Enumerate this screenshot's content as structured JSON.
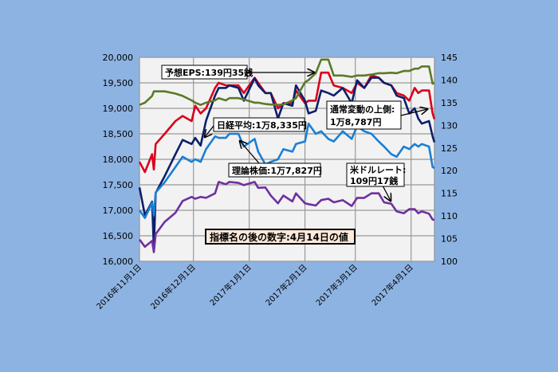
{
  "chart_data": {
    "type": "line",
    "title": "",
    "left_axis": {
      "ylim": [
        16000,
        20000
      ],
      "ticks": [
        "16,000",
        "16,500",
        "17,000",
        "17,500",
        "18,000",
        "18,500",
        "19,000",
        "19,500",
        "20,000"
      ]
    },
    "right_axis": {
      "ylim": [
        100,
        145
      ],
      "ticks": [
        "100",
        "105",
        "110",
        "115",
        "120",
        "125",
        "130",
        "135",
        "140",
        "145"
      ]
    },
    "x_ticks": [
      {
        "date": "2016-11-01",
        "label": "2016年11月1日"
      },
      {
        "date": "2016-12-01",
        "label": "2016年12月1日"
      },
      {
        "date": "2017-01-01",
        "label": "2017年1月1日"
      },
      {
        "date": "2017-02-01",
        "label": "2017年2月1日"
      },
      {
        "date": "2017-03-01",
        "label": "2017年3月1日"
      },
      {
        "date": "2017-04-01",
        "label": "2017年4月1日"
      }
    ],
    "xlim": [
      "2016-11-01",
      "2017-04-14"
    ],
    "grid": true,
    "x": [
      "2016-11-01",
      "2016-11-04",
      "2016-11-08",
      "2016-11-09",
      "2016-11-10",
      "2016-11-15",
      "2016-11-21",
      "2016-11-25",
      "2016-11-30",
      "2016-12-02",
      "2016-12-05",
      "2016-12-08",
      "2016-12-13",
      "2016-12-15",
      "2016-12-19",
      "2016-12-21",
      "2016-12-26",
      "2016-12-29",
      "2017-01-04",
      "2017-01-06",
      "2017-01-10",
      "2017-01-13",
      "2017-01-17",
      "2017-01-20",
      "2017-01-25",
      "2017-01-27",
      "2017-02-01",
      "2017-02-03",
      "2017-02-07",
      "2017-02-10",
      "2017-02-14",
      "2017-02-17",
      "2017-02-22",
      "2017-02-27",
      "2017-03-02",
      "2017-03-06",
      "2017-03-10",
      "2017-03-14",
      "2017-03-17",
      "2017-03-21",
      "2017-03-24",
      "2017-03-28",
      "2017-03-31",
      "2017-04-03",
      "2017-04-05",
      "2017-04-07",
      "2017-04-11",
      "2017-04-13",
      "2017-04-14"
    ],
    "series": [
      {
        "key": "upper",
        "axis": "left",
        "color": "#d9001b",
        "values": [
          17950,
          17750,
          18100,
          17800,
          18300,
          18500,
          18750,
          18850,
          18750,
          19050,
          18900,
          19000,
          19400,
          19500,
          19450,
          19450,
          19450,
          19300,
          19600,
          19500,
          19300,
          19300,
          19000,
          19100,
          19100,
          19350,
          19100,
          19150,
          19150,
          19700,
          19700,
          19450,
          19400,
          19300,
          19500,
          19400,
          19650,
          19600,
          19500,
          19450,
          19300,
          19250,
          19150,
          19400,
          19300,
          19350,
          19350,
          18900,
          18787
        ]
      },
      {
        "key": "nikkei",
        "axis": "left",
        "color": "#0d1f6b",
        "values": [
          17450,
          16900,
          17170,
          16250,
          17340,
          17670,
          18100,
          18380,
          18300,
          18420,
          18270,
          18760,
          19250,
          19400,
          19400,
          19450,
          19400,
          19150,
          19590,
          19450,
          19300,
          19300,
          18800,
          19100,
          19050,
          19450,
          19150,
          18900,
          18950,
          19350,
          19300,
          19250,
          19400,
          19100,
          19550,
          19400,
          19600,
          19600,
          19500,
          19450,
          19250,
          19200,
          18900,
          19000,
          18800,
          18700,
          18750,
          18450,
          18335
        ]
      },
      {
        "key": "theoretical",
        "axis": "left",
        "color": "#1a7fd4",
        "values": [
          17000,
          16850,
          17150,
          16900,
          17350,
          17550,
          17850,
          18050,
          17950,
          18000,
          17950,
          18200,
          18450,
          18420,
          18420,
          18500,
          18500,
          18250,
          18400,
          18150,
          17900,
          17950,
          18000,
          18200,
          18150,
          18300,
          18350,
          18700,
          18500,
          18550,
          18400,
          18350,
          18550,
          18400,
          18650,
          18550,
          18500,
          18350,
          18250,
          18100,
          18050,
          18250,
          18200,
          18300,
          18250,
          18300,
          18250,
          17850,
          17827
        ]
      },
      {
        "key": "eps",
        "axis": "right",
        "color": "#5a7a28",
        "values": [
          134.5,
          135,
          136.5,
          137.5,
          137.5,
          137.5,
          137,
          136.5,
          135.5,
          135,
          134.5,
          135,
          135.5,
          136,
          135.5,
          136,
          136,
          135.7,
          135,
          135,
          134.7,
          134.6,
          134.5,
          134.6,
          135.5,
          136,
          139.5,
          140,
          141.5,
          144.5,
          144.5,
          141,
          141,
          140.7,
          141,
          141,
          141.2,
          141.5,
          141.5,
          141.6,
          141.5,
          142,
          142,
          142.5,
          142.5,
          143,
          143,
          139.2,
          139.35
        ]
      },
      {
        "key": "usdjpy",
        "axis": "right",
        "color": "#7030a0",
        "values": [
          104.8,
          103.2,
          104.5,
          102.0,
          106.0,
          108.7,
          110.7,
          113.3,
          114.2,
          113.8,
          114.2,
          114.0,
          115.0,
          117.5,
          117.0,
          117.5,
          117.3,
          116.8,
          117.5,
          116.2,
          116.3,
          114.5,
          112.8,
          114.5,
          113.2,
          115.0,
          112.8,
          112.6,
          112.3,
          113.5,
          113.8,
          113.0,
          113.5,
          112.2,
          114.0,
          114.0,
          115.0,
          115.0,
          113.0,
          112.7,
          111.0,
          110.6,
          111.5,
          111.5,
          110.6,
          111.0,
          110.5,
          109.2,
          109.17
        ]
      }
    ],
    "annotations": {
      "eps": "予想EPS:139円35銭",
      "nikkei": "日経平均:1万8,335円",
      "theoretical": "理論株価:1万7,827円",
      "upper_line1": "通常変動の上側:",
      "upper_line2": "1万8,787円",
      "usd_line1": "米ドルレート:",
      "usd_line2": "109円17銭",
      "note": "指標名の後の数字:4月14日の値"
    }
  }
}
